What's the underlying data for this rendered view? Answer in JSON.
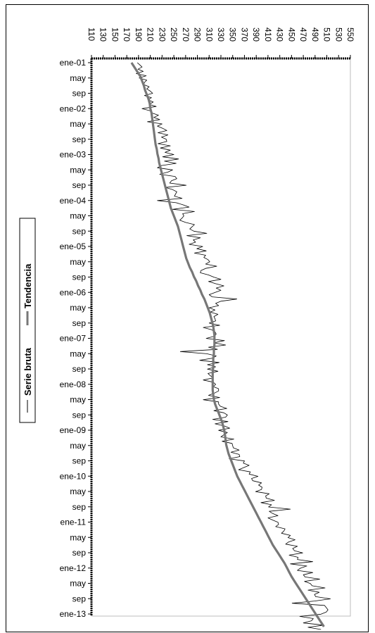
{
  "chart_data": {
    "type": "line",
    "orientation": "rotated-90",
    "title": "",
    "xlabel": "",
    "ylabel": "",
    "ylim": [
      110,
      550
    ],
    "y_ticks": [
      110,
      130,
      150,
      170,
      190,
      210,
      230,
      250,
      270,
      290,
      310,
      330,
      350,
      370,
      390,
      410,
      430,
      450,
      470,
      490,
      510,
      530,
      550
    ],
    "time_labels": [
      "ene-01",
      "may",
      "sep",
      "ene-02",
      "may",
      "sep",
      "ene-03",
      "may",
      "sep",
      "ene-04",
      "may",
      "sep",
      "ene-05",
      "may",
      "sep",
      "ene-06",
      "may",
      "sep",
      "ene-07",
      "may",
      "sep",
      "ene-08",
      "may",
      "sep",
      "ene-09",
      "may",
      "sep",
      "ene-10",
      "may",
      "sep",
      "ene-11",
      "may",
      "sep",
      "ene-12",
      "may",
      "sep",
      "ene-13"
    ],
    "legend_position": "left",
    "series": [
      {
        "name": "Serie bruta",
        "color": "#000000",
        "values": [
          188,
          192,
          196,
          189,
          198,
          186,
          203,
          191,
          204,
          200,
          199,
          208,
          204,
          210,
          214,
          200,
          212,
          206,
          215,
          208,
          220,
          196,
          210,
          213,
          224,
          216,
          226,
          205,
          230,
          222,
          231,
          238,
          223,
          240,
          229,
          237,
          238,
          223,
          244,
          227,
          244,
          235,
          250,
          231,
          258,
          234,
          254,
          229,
          222,
          248,
          240,
          226,
          252,
          255,
          246,
          243,
          271,
          236,
          248,
          255,
          253,
          251,
          264,
          222,
          254,
          266,
          276,
          248,
          285,
          265,
          267,
          264,
          260,
          270,
          285,
          281,
          277,
          284,
          306,
          272,
          295,
          283,
          287,
          276,
          299,
          289,
          305,
          285,
          304,
          301,
          308,
          311,
          304,
          323,
          304,
          296,
          295,
          309,
          318,
          330,
          309,
          321,
          335,
          322,
          330,
          320,
          310,
          315,
          357,
          330,
          321,
          326,
          310,
          320,
          312,
          325,
          318,
          320,
          321,
          310,
          328,
          300,
          314,
          320,
          322,
          319,
          305,
          336,
          318,
          338,
          309,
          324,
          261,
          306,
          322,
          316,
          294,
          327,
          307,
          321,
          307,
          325,
          308,
          312,
          317,
          300,
          317,
          321,
          317,
          326,
          326,
          319,
          309,
          328,
          300,
          326,
          326,
          329,
          340,
          318,
          335,
          341,
          338,
          316,
          342,
          320,
          336,
          345,
          326,
          341,
          335,
          330,
          352,
          332,
          349,
          350,
          351,
          361,
          347,
          361,
          362,
          344,
          370,
          368,
          378,
          369,
          360,
          380,
          378,
          393,
          382,
          384,
          399,
          394,
          400,
          399,
          389,
          412,
          406,
          407,
          421,
          398,
          416,
          411,
          448,
          412,
          418,
          427,
          410,
          418,
          427,
          428,
          423,
          439,
          437,
          433,
          448,
          444,
          456,
          445,
          440,
          460,
          452,
          455,
          469,
          446,
          461,
          460,
          486,
          448,
          476,
          465,
          460,
          486,
          470,
          473,
          498,
          472,
          482,
          485,
          507,
          478,
          497,
          489,
          491,
          516,
          489,
          451,
          506,
          509,
          512,
          509,
          500,
          464,
          487,
          484,
          470,
          505,
          478,
          500
        ]
      },
      {
        "name": "Tendencia",
        "color": "#777777",
        "values": [
          178,
          183,
          188,
          193,
          196,
          199,
          201,
          204,
          207,
          209,
          210,
          212,
          213,
          214,
          215,
          216,
          217,
          218,
          219,
          221,
          222,
          224,
          225,
          227,
          229,
          231,
          233,
          235,
          237,
          239,
          241,
          243,
          245,
          248,
          251,
          254,
          257,
          259,
          261,
          263,
          265,
          267,
          269,
          271,
          274,
          277,
          281,
          284,
          288,
          291,
          295,
          298,
          302,
          305,
          308,
          311,
          313,
          315,
          317,
          318,
          319,
          319,
          319,
          318,
          318,
          317,
          317,
          317,
          316,
          316,
          316,
          316,
          316,
          317,
          318,
          320,
          323,
          326,
          329,
          332,
          334,
          336,
          337,
          338,
          339,
          341,
          343,
          346,
          349,
          352,
          355,
          358,
          362,
          366,
          370,
          374,
          378,
          382,
          386,
          390,
          394,
          398,
          402,
          406,
          410,
          414,
          418,
          423,
          428,
          433,
          438,
          442,
          446,
          450,
          455,
          460,
          465,
          470,
          475,
          480,
          485,
          490,
          495,
          500,
          505
        ]
      }
    ]
  },
  "legend": {
    "items": [
      {
        "label": "Serie bruta",
        "color": "#000000"
      },
      {
        "label": "Tendencia",
        "color": "#777777"
      }
    ]
  }
}
